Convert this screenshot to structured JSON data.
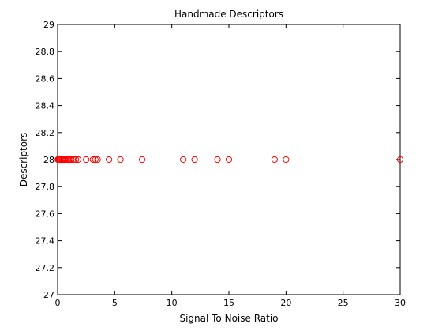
{
  "chart_data": {
    "type": "scatter",
    "title": "Handmade Descriptors",
    "xlabel": "Signal To Noise Ratio",
    "ylabel": "Descriptors",
    "xlim": [
      0,
      30
    ],
    "ylim": [
      27,
      29
    ],
    "xticks": [
      0,
      5,
      10,
      15,
      20,
      25,
      30
    ],
    "xtick_labels": [
      "0",
      "5",
      "10",
      "15",
      "20",
      "25",
      "30"
    ],
    "yticks": [
      27,
      27.2,
      27.4,
      27.6,
      27.8,
      28,
      28.2,
      28.4,
      28.6,
      28.8,
      29
    ],
    "ytick_labels": [
      "27",
      "27.2",
      "27.4",
      "27.6",
      "27.8",
      "28",
      "28.2",
      "28.4",
      "28.6",
      "28.8",
      "29"
    ],
    "grid": false,
    "marker": "circle-open",
    "series_color": "#ff0000",
    "points": [
      {
        "x": 0.02,
        "y": 28
      },
      {
        "x": 0.05,
        "y": 28
      },
      {
        "x": 0.1,
        "y": 28
      },
      {
        "x": 0.15,
        "y": 28
      },
      {
        "x": 0.2,
        "y": 28
      },
      {
        "x": 0.3,
        "y": 28
      },
      {
        "x": 0.4,
        "y": 28
      },
      {
        "x": 0.5,
        "y": 28
      },
      {
        "x": 0.6,
        "y": 28
      },
      {
        "x": 0.7,
        "y": 28
      },
      {
        "x": 0.8,
        "y": 28
      },
      {
        "x": 0.9,
        "y": 28
      },
      {
        "x": 1.0,
        "y": 28
      },
      {
        "x": 1.1,
        "y": 28
      },
      {
        "x": 1.2,
        "y": 28
      },
      {
        "x": 1.4,
        "y": 28
      },
      {
        "x": 1.6,
        "y": 28
      },
      {
        "x": 1.8,
        "y": 28
      },
      {
        "x": 2.5,
        "y": 28
      },
      {
        "x": 3.1,
        "y": 28
      },
      {
        "x": 3.3,
        "y": 28
      },
      {
        "x": 3.5,
        "y": 28
      },
      {
        "x": 4.5,
        "y": 28
      },
      {
        "x": 5.5,
        "y": 28
      },
      {
        "x": 7.4,
        "y": 28
      },
      {
        "x": 11,
        "y": 28
      },
      {
        "x": 12,
        "y": 28
      },
      {
        "x": 14,
        "y": 28
      },
      {
        "x": 15,
        "y": 28
      },
      {
        "x": 19,
        "y": 28
      },
      {
        "x": 20,
        "y": 28
      },
      {
        "x": 30,
        "y": 28
      }
    ]
  }
}
